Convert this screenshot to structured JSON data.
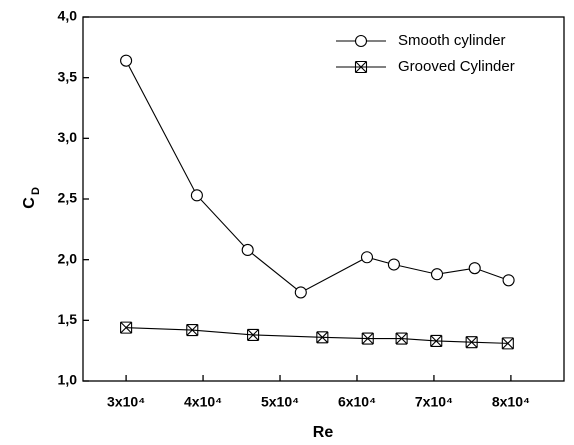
{
  "chart_data": {
    "type": "line",
    "xlabel": "Re",
    "ylabel": {
      "text": "C",
      "subscript": "D"
    },
    "xlim": [
      24400,
      86900
    ],
    "xticks": [
      {
        "value": 30000,
        "label": "3x10⁴"
      },
      {
        "value": 40000,
        "label": "4x10⁴"
      },
      {
        "value": 50000,
        "label": "5x10⁴"
      },
      {
        "value": 60000,
        "label": "6x10⁴"
      },
      {
        "value": 70000,
        "label": "7x10⁴"
      },
      {
        "value": 80000,
        "label": "8x10⁴"
      }
    ],
    "ylim": [
      1.0,
      4.0
    ],
    "yticks": [
      {
        "value": 1.0,
        "label": "1,0"
      },
      {
        "value": 1.5,
        "label": "1,5"
      },
      {
        "value": 2.0,
        "label": "2,0"
      },
      {
        "value": 2.5,
        "label": "2,5"
      },
      {
        "value": 3.0,
        "label": "3,0"
      },
      {
        "value": 3.5,
        "label": "3,5"
      },
      {
        "value": 4.0,
        "label": "4,0"
      }
    ],
    "legend": "upper right",
    "series": [
      {
        "name": "Smooth cylinder",
        "marker": "circle",
        "color": "#000000",
        "x": [
          30000,
          39200,
          45800,
          52700,
          61300,
          64800,
          70400,
          75300,
          79700
        ],
        "values": [
          3.64,
          2.53,
          2.08,
          1.73,
          2.02,
          1.96,
          1.88,
          1.93,
          1.83
        ]
      },
      {
        "name": "Grooved Cylinder",
        "marker": "crossbox",
        "color": "#000000",
        "x": [
          30000,
          38600,
          46500,
          55500,
          61400,
          65800,
          70300,
          74900,
          79600
        ],
        "values": [
          1.44,
          1.42,
          1.38,
          1.36,
          1.35,
          1.35,
          1.33,
          1.32,
          1.31
        ]
      }
    ]
  }
}
